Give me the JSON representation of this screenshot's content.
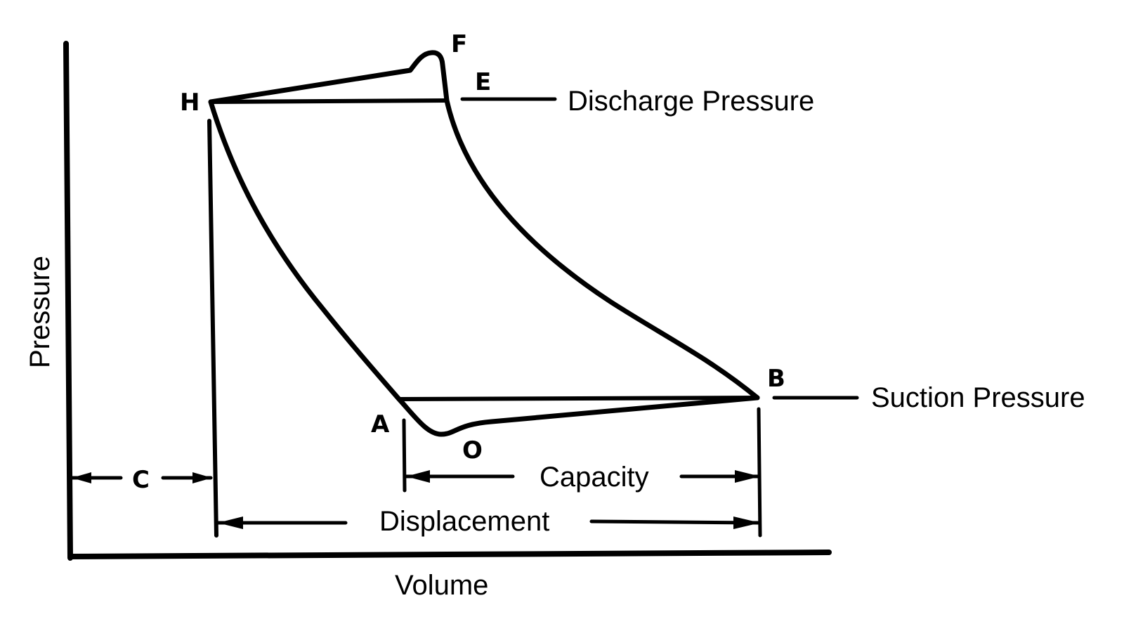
{
  "axes": {
    "y_label": "Pressure",
    "x_label": "Volume"
  },
  "points": {
    "h": "H",
    "f": "F",
    "e": "E",
    "b": "B",
    "a": "A",
    "o": "O"
  },
  "labels": {
    "discharge": "Discharge Pressure",
    "suction": "Suction Pressure",
    "capacity": "Capacity",
    "displacement": "Displacement",
    "clearance": "C"
  },
  "colors": {
    "ink": "#000000",
    "background": "#ffffff"
  }
}
